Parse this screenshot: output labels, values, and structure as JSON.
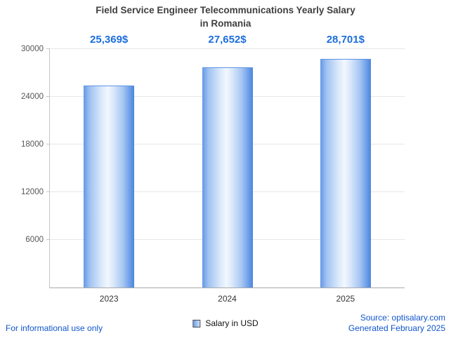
{
  "chart": {
    "title_line1": "Field Service Engineer Telecommunications Yearly Salary",
    "title_line2": "in Romania"
  },
  "chart_data": {
    "type": "bar",
    "title": "Field Service Engineer Telecommunications Yearly Salary in Romania",
    "categories": [
      "2023",
      "2024",
      "2025"
    ],
    "values": [
      25369,
      27652,
      28701
    ],
    "value_labels": [
      "25,369$",
      "27,652$",
      "28,701$"
    ],
    "series": [
      {
        "name": "Salary in USD",
        "values": [
          25369,
          27652,
          28701
        ]
      }
    ],
    "xlabel": "",
    "ylabel": "",
    "ylim": [
      0,
      30000
    ],
    "yticks": [
      6000,
      12000,
      18000,
      24000,
      30000
    ],
    "grid": true,
    "legend_position": "bottom"
  },
  "legend": {
    "label": "Salary in USD"
  },
  "footer": {
    "disclaimer": "For informational use only",
    "source": "Source: optisalary.com",
    "generated": "Generated February 2025"
  },
  "colors": {
    "value_label_blue": "#1b6ddd",
    "link_blue": "#1155cc",
    "bar_edge_blue": "#4b86dc",
    "bar_highlight": "#f2f7fe",
    "title_text": "#3f3f3f",
    "gridline": "#e7e7e7"
  }
}
